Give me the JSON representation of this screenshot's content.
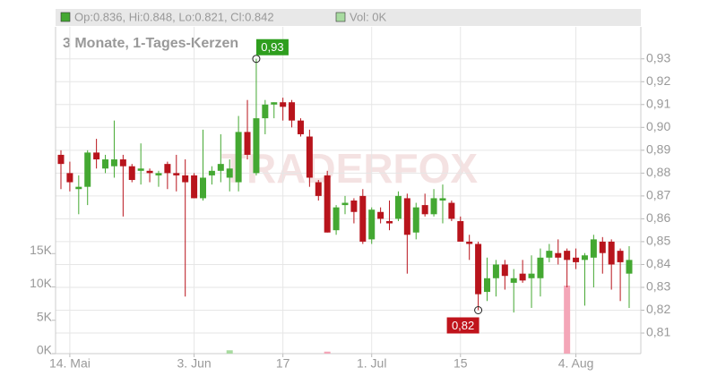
{
  "chart_data": {
    "type": "candlestick",
    "legend": [
      "Op:0.836, Hi:0.848, Lo:0.821, Cl:0.842",
      "Vol: 0K"
    ],
    "subtitle": "3 Monate, 1-Tages-Kerzen",
    "watermark": "TRADERFOX",
    "categories": [
      null,
      "14. Mai",
      null,
      null,
      null,
      null,
      null,
      null,
      null,
      null,
      null,
      null,
      null,
      null,
      null,
      "3. Jun",
      null,
      null,
      null,
      null,
      null,
      null,
      null,
      null,
      null,
      "17",
      null,
      null,
      null,
      null,
      null,
      null,
      null,
      null,
      null,
      "1. Jul",
      null,
      null,
      null,
      null,
      null,
      null,
      null,
      null,
      null,
      "15",
      null,
      null,
      null,
      null,
      null,
      null,
      null,
      null,
      null,
      null,
      null,
      null,
      "4. Aug",
      null,
      null,
      null,
      null,
      null,
      null
    ],
    "open": [
      0.888,
      0.88,
      0.873,
      0.874,
      0.889,
      0.882,
      0.883,
      0.886,
      0.883,
      0.881,
      0.881,
      0.879,
      0.884,
      0.88,
      0.879,
      0.879,
      0.869,
      0.879,
      0.881,
      0.878,
      0.876,
      0.898,
      0.88,
      0.904,
      0.91,
      0.911,
      0.911,
      0.903,
      0.896,
      0.876,
      0.879,
      0.855,
      0.866,
      0.868,
      0.87,
      0.851,
      0.863,
      0.859,
      0.86,
      0.869,
      0.854,
      0.866,
      0.862,
      0.868,
      0.867,
      0.859,
      0.85,
      0.849,
      0.828,
      0.834,
      0.84,
      0.832,
      0.836,
      0.834,
      0.834,
      0.843,
      0.845,
      0.846,
      0.843,
      0.842,
      0.843,
      0.85,
      0.85,
      0.846,
      0.836
    ],
    "high": [
      0.89,
      0.885,
      0.879,
      0.89,
      0.895,
      0.888,
      0.903,
      0.888,
      0.884,
      0.893,
      0.882,
      0.881,
      0.885,
      0.888,
      0.886,
      0.88,
      0.899,
      0.883,
      0.897,
      0.886,
      0.905,
      0.912,
      0.93,
      0.912,
      0.911,
      0.913,
      0.912,
      0.904,
      0.899,
      0.877,
      0.881,
      0.866,
      0.87,
      0.869,
      0.873,
      0.865,
      0.865,
      0.868,
      0.872,
      0.871,
      0.867,
      0.871,
      0.873,
      0.875,
      0.868,
      0.861,
      0.853,
      0.85,
      0.843,
      0.842,
      0.842,
      0.838,
      0.842,
      0.844,
      0.847,
      0.849,
      0.851,
      0.847,
      0.847,
      0.845,
      0.853,
      0.852,
      0.851,
      0.847,
      0.848
    ],
    "low": [
      0.873,
      0.872,
      0.862,
      0.866,
      0.882,
      0.88,
      0.878,
      0.861,
      0.876,
      0.875,
      0.876,
      0.874,
      0.873,
      0.872,
      0.826,
      0.869,
      0.868,
      0.875,
      0.876,
      0.872,
      0.872,
      0.886,
      0.879,
      0.897,
      0.904,
      0.903,
      0.9,
      0.896,
      0.874,
      0.868,
      0.854,
      0.853,
      0.862,
      0.858,
      0.849,
      0.849,
      0.858,
      0.855,
      0.859,
      0.836,
      0.851,
      0.861,
      0.861,
      0.858,
      0.859,
      0.85,
      0.842,
      0.82,
      0.824,
      0.826,
      0.829,
      0.819,
      0.832,
      0.821,
      0.826,
      0.841,
      0.84,
      0.83,
      0.838,
      0.822,
      0.83,
      0.836,
      0.829,
      0.824,
      0.821
    ],
    "close": [
      0.884,
      0.876,
      0.874,
      0.889,
      0.886,
      0.886,
      0.886,
      0.883,
      0.877,
      0.882,
      0.88,
      0.88,
      0.88,
      0.879,
      0.876,
      0.869,
      0.878,
      0.881,
      0.884,
      0.882,
      0.898,
      0.888,
      0.904,
      0.91,
      0.911,
      0.909,
      0.903,
      0.897,
      0.878,
      0.87,
      0.854,
      0.865,
      0.867,
      0.863,
      0.85,
      0.864,
      0.86,
      0.858,
      0.87,
      0.853,
      0.865,
      0.862,
      0.869,
      0.869,
      0.86,
      0.85,
      0.849,
      0.827,
      0.834,
      0.84,
      0.835,
      0.834,
      0.833,
      0.836,
      0.843,
      0.846,
      0.843,
      0.842,
      0.841,
      0.844,
      0.851,
      0.845,
      0.84,
      0.841,
      0.842
    ],
    "volume": [
      0,
      0,
      0,
      0,
      0,
      0,
      0,
      0,
      0,
      0,
      0,
      0,
      0,
      0,
      0,
      0,
      0,
      0,
      0,
      500,
      0,
      0,
      0,
      0,
      0,
      0,
      0,
      0,
      0,
      0,
      300,
      0,
      0,
      0,
      0,
      0,
      0,
      0,
      0,
      0,
      0,
      0,
      0,
      0,
      0,
      0,
      0,
      0,
      0,
      0,
      0,
      0,
      0,
      0,
      0,
      0,
      0,
      10200,
      0,
      0,
      0,
      0,
      0,
      0,
      0
    ],
    "up_color": "#44a832",
    "down_color": "#b8141c",
    "volume_up_color": "#a8dba0",
    "volume_down_color": "#f4a6b8",
    "annotations": [
      {
        "label": "0,93",
        "value": 0.93,
        "index": 22,
        "color": "#2e9e1e"
      },
      {
        "label": "0,82",
        "value": 0.82,
        "index": 47,
        "color": "#c0141c"
      }
    ],
    "ylim": [
      0.801,
      0.944
    ],
    "yticks": [
      {
        "value": 0.81,
        "label": "0,81"
      },
      {
        "value": 0.82,
        "label": "0,82"
      },
      {
        "value": 0.83,
        "label": "0,83"
      },
      {
        "value": 0.84,
        "label": "0,84"
      },
      {
        "value": 0.85,
        "label": "0,85"
      },
      {
        "value": 0.86,
        "label": "0,86"
      },
      {
        "value": 0.87,
        "label": "0,87"
      },
      {
        "value": 0.88,
        "label": "0,88"
      },
      {
        "value": 0.89,
        "label": "0,89"
      },
      {
        "value": 0.9,
        "label": "0,90"
      },
      {
        "value": 0.91,
        "label": "0,91"
      },
      {
        "value": 0.92,
        "label": "0,92"
      },
      {
        "value": 0.93,
        "label": "0,93"
      }
    ],
    "y2lim": [
      0,
      49000
    ],
    "y2ticks": [
      {
        "value": 0,
        "label": "0K"
      },
      {
        "value": 5000,
        "label": "5K"
      },
      {
        "value": 10000,
        "label": "10K"
      },
      {
        "value": 15000,
        "label": "15K"
      }
    ],
    "grid": true
  }
}
